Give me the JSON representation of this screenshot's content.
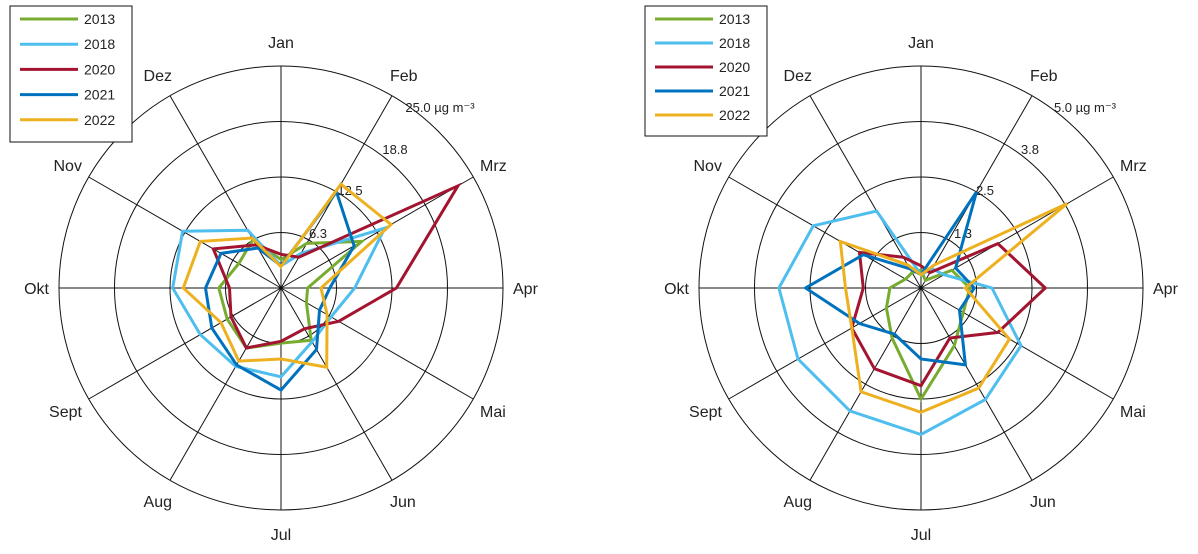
{
  "chart_data": [
    {
      "type": "radar",
      "months": [
        "Jan",
        "Feb",
        "Mrz",
        "Apr",
        "Mai",
        "Jun",
        "Jul",
        "Aug",
        "Sept",
        "Okt",
        "Nov",
        "Dez"
      ],
      "ring_labels": [
        "6.3",
        "12.5",
        "18.8",
        "25.0 µg m⁻³"
      ],
      "rmax": 25,
      "legend": [
        "2013",
        "2018",
        "2020",
        "2021",
        "2022"
      ],
      "series": [
        {
          "name": "2013",
          "color": "#77ac30",
          "values": [
            3.2,
            5.8,
            10.5,
            3.0,
            3.3,
            6.8,
            6.2,
            7.8,
            7.0,
            7.0,
            5.5,
            6.3
          ]
        },
        {
          "name": "2018",
          "color": "#4dbeee",
          "values": [
            2.5,
            4.5,
            13.5,
            8.3,
            6.5,
            7.0,
            10.0,
            10.2,
            10.5,
            12.2,
            12.8,
            7.5
          ]
        },
        {
          "name": "2020",
          "color": "#a2142f",
          "values": [
            3.8,
            4.0,
            23.0,
            13.0,
            7.5,
            5.3,
            6.0,
            7.8,
            6.5,
            5.8,
            8.8,
            5.6
          ]
        },
        {
          "name": "2021",
          "color": "#0072bd",
          "values": [
            2.5,
            12.5,
            9.5,
            5.5,
            5.0,
            8.0,
            11.5,
            10.0,
            9.0,
            8.5,
            7.8,
            5.2
          ]
        },
        {
          "name": "2022",
          "color": "#edb120",
          "values": [
            2.4,
            13.5,
            14.3,
            4.5,
            6.0,
            10.3,
            8.0,
            9.5,
            7.8,
            11.0,
            10.5,
            6.5
          ]
        }
      ]
    },
    {
      "type": "radar",
      "months": [
        "Jan",
        "Feb",
        "Mrz",
        "Apr",
        "Mai",
        "Jun",
        "Jul",
        "Aug",
        "Sept",
        "Okt",
        "Nov",
        "Dez"
      ],
      "ring_labels": [
        "1.3",
        "2.5",
        "3.8",
        "5.0 µg m⁻³"
      ],
      "rmax": 5,
      "legend": [
        "2013",
        "2018",
        "2020",
        "2021",
        "2022"
      ],
      "series": [
        {
          "name": "2013",
          "color": "#77ac30",
          "values": [
            0.4,
            0.2,
            0.8,
            1.1,
            1.1,
            1.5,
            2.5,
            1.3,
            0.9,
            0.7,
            0.4,
            0.4
          ]
        },
        {
          "name": "2018",
          "color": "#4dbeee",
          "values": [
            0.3,
            0.5,
            0.6,
            1.6,
            2.6,
            2.9,
            3.3,
            3.2,
            3.2,
            3.2,
            2.8,
            2.0
          ]
        },
        {
          "name": "2020",
          "color": "#a2142f",
          "values": [
            0.5,
            0.4,
            2.0,
            2.8,
            2.0,
            1.3,
            2.2,
            2.1,
            1.8,
            1.3,
            1.6,
            0.8
          ]
        },
        {
          "name": "2021",
          "color": "#0072bd",
          "values": [
            0.3,
            2.5,
            0.9,
            1.2,
            1.0,
            2.0,
            1.6,
            1.2,
            1.6,
            2.6,
            1.5,
            0.5
          ]
        },
        {
          "name": "2022",
          "color": "#edb120",
          "values": [
            0.3,
            0.6,
            3.8,
            1.0,
            2.3,
            2.6,
            2.8,
            2.7,
            1.8,
            1.7,
            2.1,
            0.6
          ]
        }
      ]
    }
  ]
}
